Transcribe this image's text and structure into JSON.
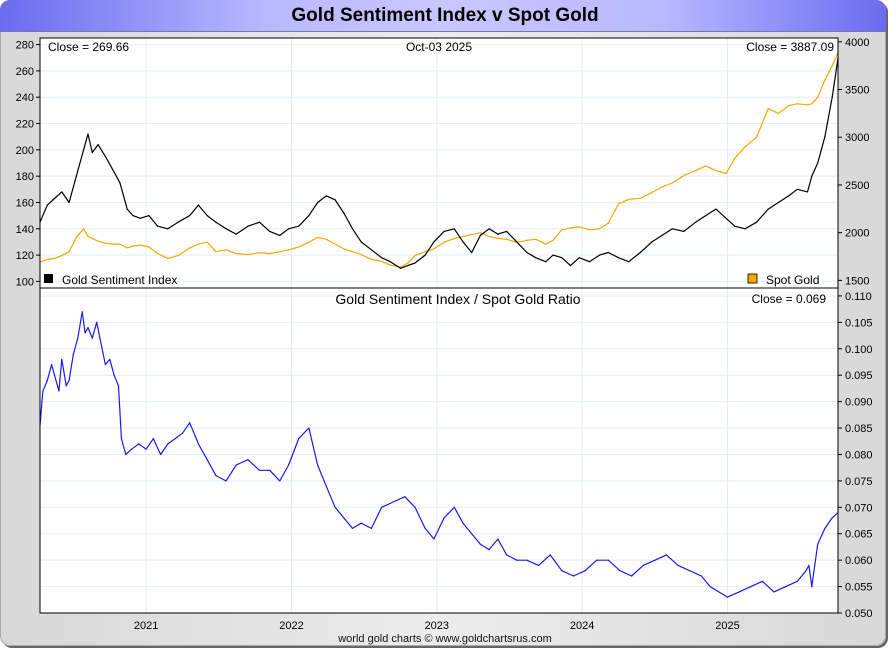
{
  "title": "Gold Sentiment Index v Spot Gold",
  "footer": "world gold charts © www.goldchartsrus.com",
  "colors": {
    "sentiment": "#000000",
    "spot_gold": "#f5a800",
    "ratio": "#1a1aee",
    "grid": "#e2eef8",
    "legend_spot": "#f5a800",
    "legend_sentiment": "#000000"
  },
  "chart_data": [
    {
      "type": "line",
      "title": "",
      "date_label": "Oct-03  2025",
      "left_close_label": "Close = 269.66",
      "right_close_label": "Close = 3887.09",
      "x_range": [
        2020.27,
        2025.76
      ],
      "x_ticks": [
        2021,
        2022,
        2023,
        2024,
        2025
      ],
      "left_axis": {
        "ylim": [
          95,
          285
        ],
        "ticks": [
          100,
          120,
          140,
          160,
          180,
          200,
          220,
          240,
          260,
          280
        ]
      },
      "right_axis": {
        "ylim": [
          1420,
          4040
        ],
        "ticks": [
          1500,
          2000,
          2500,
          3000,
          3500,
          4000
        ]
      },
      "grid": true,
      "legend": [
        {
          "name": "Gold Sentiment Index",
          "position": "bottom-left",
          "axis": "left"
        },
        {
          "name": "Spot Gold",
          "position": "bottom-right",
          "axis": "right"
        }
      ],
      "series": [
        {
          "name": "Gold Sentiment Index",
          "axis": "left",
          "x": [
            2020.27,
            2020.32,
            2020.37,
            2020.42,
            2020.47,
            2020.52,
            2020.57,
            2020.6,
            2020.63,
            2020.67,
            2020.72,
            2020.77,
            2020.82,
            2020.87,
            2020.91,
            2020.96,
            2021.02,
            2021.08,
            2021.15,
            2021.22,
            2021.3,
            2021.36,
            2021.42,
            2021.48,
            2021.55,
            2021.62,
            2021.7,
            2021.78,
            2021.85,
            2021.92,
            2021.98,
            2022.05,
            2022.12,
            2022.18,
            2022.24,
            2022.3,
            2022.36,
            2022.42,
            2022.48,
            2022.55,
            2022.62,
            2022.68,
            2022.75,
            2022.8,
            2022.85,
            2022.92,
            2022.98,
            2023.05,
            2023.12,
            2023.18,
            2023.24,
            2023.3,
            2023.36,
            2023.42,
            2023.48,
            2023.55,
            2023.62,
            2023.68,
            2023.75,
            2023.8,
            2023.86,
            2023.92,
            2023.98,
            2024.05,
            2024.12,
            2024.18,
            2024.25,
            2024.32,
            2024.4,
            2024.48,
            2024.55,
            2024.62,
            2024.7,
            2024.78,
            2024.85,
            2024.92,
            2024.99,
            2025.05,
            2025.12,
            2025.2,
            2025.28,
            2025.35,
            2025.42,
            2025.48,
            2025.55,
            2025.58,
            2025.62,
            2025.67,
            2025.72,
            2025.76
          ],
          "y": [
            145,
            158,
            163,
            168,
            160,
            180,
            200,
            212,
            198,
            204,
            195,
            185,
            175,
            155,
            150,
            148,
            150,
            142,
            140,
            145,
            150,
            158,
            150,
            145,
            140,
            136,
            142,
            145,
            138,
            135,
            140,
            142,
            150,
            160,
            165,
            162,
            152,
            140,
            130,
            124,
            118,
            115,
            110,
            112,
            114,
            120,
            130,
            138,
            140,
            130,
            122,
            135,
            140,
            136,
            138,
            130,
            122,
            118,
            115,
            120,
            118,
            112,
            118,
            115,
            120,
            122,
            118,
            115,
            122,
            130,
            135,
            140,
            138,
            145,
            150,
            155,
            148,
            142,
            140,
            145,
            155,
            160,
            165,
            170,
            168,
            180,
            190,
            210,
            240,
            269.66
          ]
        },
        {
          "name": "Spot Gold",
          "axis": "right",
          "x": [
            2020.27,
            2020.32,
            2020.37,
            2020.42,
            2020.47,
            2020.52,
            2020.57,
            2020.6,
            2020.63,
            2020.67,
            2020.72,
            2020.77,
            2020.82,
            2020.87,
            2020.91,
            2020.96,
            2021.02,
            2021.08,
            2021.15,
            2021.22,
            2021.3,
            2021.36,
            2021.42,
            2021.48,
            2021.55,
            2021.62,
            2021.7,
            2021.78,
            2021.85,
            2021.92,
            2021.98,
            2022.05,
            2022.12,
            2022.18,
            2022.24,
            2022.3,
            2022.36,
            2022.42,
            2022.48,
            2022.55,
            2022.62,
            2022.68,
            2022.75,
            2022.8,
            2022.85,
            2022.92,
            2022.98,
            2023.05,
            2023.12,
            2023.18,
            2023.24,
            2023.3,
            2023.36,
            2023.42,
            2023.48,
            2023.55,
            2023.62,
            2023.68,
            2023.75,
            2023.8,
            2023.86,
            2023.92,
            2023.98,
            2024.05,
            2024.12,
            2024.18,
            2024.25,
            2024.32,
            2024.4,
            2024.48,
            2024.55,
            2024.62,
            2024.7,
            2024.78,
            2024.85,
            2024.92,
            2024.99,
            2025.05,
            2025.12,
            2025.2,
            2025.28,
            2025.35,
            2025.42,
            2025.48,
            2025.55,
            2025.58,
            2025.62,
            2025.67,
            2025.72,
            2025.76
          ],
          "y": [
            1690,
            1720,
            1730,
            1760,
            1800,
            1950,
            2040,
            1960,
            1940,
            1910,
            1890,
            1880,
            1880,
            1840,
            1860,
            1870,
            1850,
            1780,
            1730,
            1760,
            1840,
            1880,
            1900,
            1800,
            1820,
            1780,
            1770,
            1790,
            1780,
            1800,
            1820,
            1850,
            1900,
            1950,
            1930,
            1880,
            1830,
            1800,
            1770,
            1720,
            1700,
            1660,
            1640,
            1680,
            1760,
            1800,
            1830,
            1900,
            1940,
            1960,
            1980,
            2000,
            1960,
            1940,
            1930,
            1900,
            1920,
            1930,
            1880,
            1920,
            2030,
            2050,
            2060,
            2030,
            2040,
            2100,
            2300,
            2350,
            2360,
            2420,
            2480,
            2520,
            2600,
            2650,
            2700,
            2650,
            2620,
            2780,
            2900,
            3000,
            3300,
            3250,
            3330,
            3350,
            3340,
            3350,
            3420,
            3600,
            3750,
            3887.09
          ]
        }
      ]
    },
    {
      "type": "line",
      "title": "Gold Sentiment Index  /  Spot Gold Ratio",
      "close_label": "Close = 0.069",
      "x_range": [
        2020.27,
        2025.76
      ],
      "x_ticks": [
        2021,
        2022,
        2023,
        2024,
        2025
      ],
      "x_tick_labels": [
        "2021",
        "2022",
        "2023",
        "2024",
        "2025"
      ],
      "ylim": [
        0.05,
        0.1115
      ],
      "y_ticks": [
        0.05,
        0.055,
        0.06,
        0.065,
        0.07,
        0.075,
        0.08,
        0.085,
        0.09,
        0.095,
        0.1,
        0.105,
        0.11
      ],
      "y_tick_labels": [
        "0.050",
        "0.055",
        "0.060",
        "0.065",
        "0.070",
        "0.075",
        "0.080",
        "0.085",
        "0.090",
        "0.095",
        "0.100",
        "0.105",
        "0.110"
      ],
      "grid": true,
      "series": [
        {
          "name": "Gold Sentiment Index / Spot Gold Ratio",
          "x": [
            2020.27,
            2020.29,
            2020.32,
            2020.35,
            2020.37,
            2020.4,
            2020.42,
            2020.45,
            2020.47,
            2020.5,
            2020.53,
            2020.56,
            2020.58,
            2020.6,
            2020.63,
            2020.66,
            2020.69,
            2020.72,
            2020.75,
            2020.78,
            2020.81,
            2020.83,
            2020.86,
            2020.9,
            2020.95,
            2021.0,
            2021.05,
            2021.1,
            2021.15,
            2021.2,
            2021.25,
            2021.3,
            2021.36,
            2021.42,
            2021.48,
            2021.55,
            2021.62,
            2021.7,
            2021.78,
            2021.85,
            2021.92,
            2021.98,
            2022.05,
            2022.12,
            2022.18,
            2022.24,
            2022.3,
            2022.36,
            2022.42,
            2022.48,
            2022.55,
            2022.62,
            2022.7,
            2022.78,
            2022.85,
            2022.92,
            2022.98,
            2023.05,
            2023.12,
            2023.18,
            2023.24,
            2023.3,
            2023.36,
            2023.42,
            2023.48,
            2023.55,
            2023.62,
            2023.7,
            2023.78,
            2023.86,
            2023.94,
            2024.02,
            2024.1,
            2024.18,
            2024.26,
            2024.34,
            2024.42,
            2024.5,
            2024.58,
            2024.66,
            2024.74,
            2024.82,
            2024.88,
            2024.94,
            2025.0,
            2025.08,
            2025.16,
            2025.24,
            2025.32,
            2025.4,
            2025.48,
            2025.54,
            2025.56,
            2025.58,
            2025.62,
            2025.67,
            2025.72,
            2025.76
          ],
          "y": [
            0.0855,
            0.092,
            0.094,
            0.097,
            0.095,
            0.092,
            0.098,
            0.093,
            0.094,
            0.099,
            0.102,
            0.107,
            0.103,
            0.104,
            0.102,
            0.105,
            0.101,
            0.097,
            0.098,
            0.095,
            0.093,
            0.083,
            0.08,
            0.081,
            0.082,
            0.081,
            0.083,
            0.08,
            0.082,
            0.083,
            0.084,
            0.086,
            0.082,
            0.079,
            0.076,
            0.075,
            0.078,
            0.079,
            0.077,
            0.077,
            0.075,
            0.078,
            0.083,
            0.085,
            0.078,
            0.074,
            0.07,
            0.068,
            0.066,
            0.067,
            0.066,
            0.07,
            0.071,
            0.072,
            0.07,
            0.066,
            0.064,
            0.068,
            0.07,
            0.067,
            0.065,
            0.063,
            0.062,
            0.064,
            0.061,
            0.06,
            0.06,
            0.059,
            0.061,
            0.058,
            0.057,
            0.058,
            0.06,
            0.06,
            0.058,
            0.057,
            0.059,
            0.06,
            0.061,
            0.059,
            0.058,
            0.057,
            0.055,
            0.054,
            0.053,
            0.054,
            0.055,
            0.056,
            0.054,
            0.055,
            0.056,
            0.058,
            0.059,
            0.055,
            0.063,
            0.066,
            0.068,
            0.069
          ]
        }
      ]
    }
  ]
}
